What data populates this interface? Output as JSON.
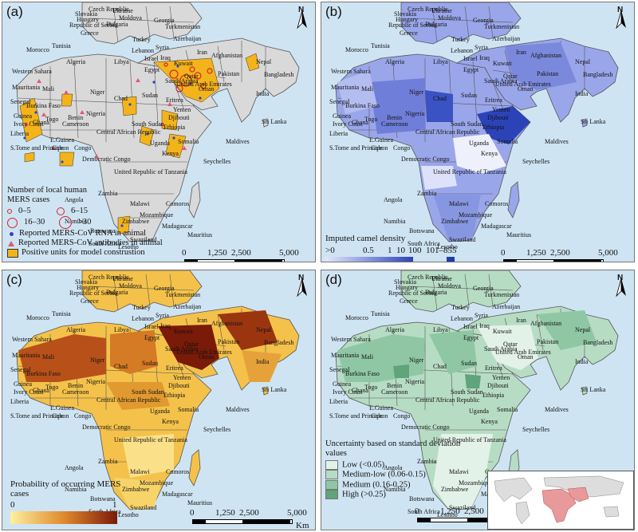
{
  "colors": {
    "sea": "#cfe4f2",
    "land": "#d9d9d9",
    "border": "#555555",
    "positive_units": "#f3b41b",
    "case_circle": "#d8232a",
    "rna_dot": "#2a47c4",
    "antibody_triangle": "#e2577a",
    "camel_low": "#e3e6fb",
    "camel_high": "#2c43b8",
    "camel_max": "#1f3fa8",
    "prob_low": "#fdf0a0",
    "prob_high": "#7a1a08",
    "unc_low": "#e3f2e8",
    "unc_medlow": "#b7dcc4",
    "unc_medium": "#8fc7a5",
    "unc_high": "#5fa47a"
  },
  "icons": {
    "north_arrow": "north-arrow-icon"
  },
  "north_label": "N",
  "panels": {
    "a": {
      "label": "(a)"
    },
    "b": {
      "label": "(b)"
    },
    "c": {
      "label": "(c)"
    },
    "d": {
      "label": "(d)"
    }
  },
  "scale_bar": {
    "ticks": [
      "0",
      "1,250",
      "2,500",
      "5,000"
    ],
    "unit": "Km"
  },
  "country_labels": [
    "Czech Republic",
    "Slovakia",
    "Ukraine",
    "Hungary",
    "Moldova",
    "Republic of Serbia",
    "Bulgaria",
    "Georgia",
    "Greece",
    "Turkmenistan",
    "Turkey",
    "Azerbaijan",
    "Tunisia",
    "Lebanon",
    "Syria",
    "Iraq",
    "Iran",
    "Afghanistan",
    "Morocco",
    "Israel",
    "Kuwait",
    "Algeria",
    "Libya",
    "Egypt",
    "Qatar",
    "Pakistan",
    "Nepal",
    "Western Sahara",
    "Saudi Arabia",
    "United Arab Emirates",
    "Bangladesh",
    "India",
    "Mauritania",
    "Mali",
    "Oman",
    "Niger",
    "Chad",
    "Sudan",
    "Eritrea",
    "Yemen",
    "Senegal",
    "Burkina Faso",
    "Djibouti",
    "Guinea",
    "Benin",
    "Nigeria",
    "Ethiopia",
    "Ivory Coast",
    "Ghana",
    "Togo",
    "Cameroon",
    "Central African Republic",
    "South Sudan",
    "Somalia",
    "Sri Lanka",
    "Liberia",
    "E.Guinea",
    "Uganda",
    "Kenya",
    "Maldives",
    "S.Tome and Principe",
    "Gabon",
    "Congo",
    "Democratic Congo",
    "United Republic of Tanzania",
    "Seychelles",
    "Angola",
    "Zambia",
    "Comoros",
    "Malawi",
    "Mozambique",
    "Namibia",
    "Zimbabwe",
    "Madagascar",
    "Mauritius",
    "Botswana",
    "Swaziland",
    "South Africa",
    "Lesotho"
  ],
  "legend_a": {
    "title": "Number of local human MERS cases",
    "case_classes": [
      "0–5",
      "6–15",
      "16–30",
      ">30"
    ],
    "rna": "Reported MERS-CoV RNA in animal",
    "antibody": "Reported MERS-CoV antibodies in animal",
    "positive": "Positive units for model construstion"
  },
  "legend_b": {
    "title": "Imputed camel density",
    "ticks": [
      ">0",
      "0.5",
      "1",
      "10",
      "100",
      "101–855"
    ]
  },
  "legend_c": {
    "title": "Probability of occurring MERS cases",
    "min": "0",
    "max": "1"
  },
  "legend_d": {
    "title": "Uncertainty based on standard deviation values",
    "classes": [
      "Low (<0.05)",
      "Medium-low (0.06-0.15)",
      "Medium (0.16-0.25)",
      "High (>0.25)"
    ]
  }
}
